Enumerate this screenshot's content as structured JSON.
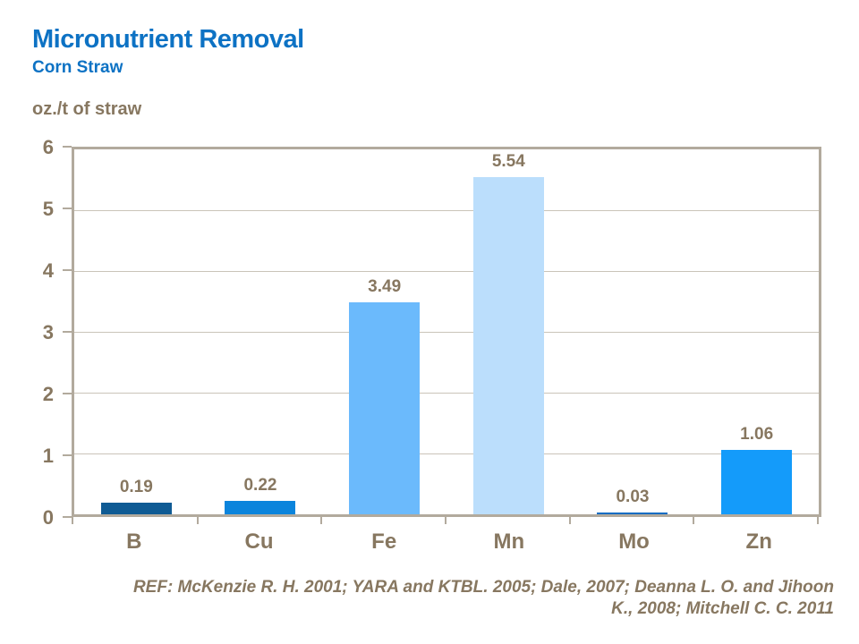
{
  "header": {
    "title": "Micronutrient Removal",
    "subtitle": "Corn Straw",
    "title_color": "#0d72c4"
  },
  "chart_data": {
    "type": "bar",
    "title": "Micronutrient Removal",
    "subtitle": "Corn Straw",
    "unit_label": "oz./t of straw",
    "xlabel": "",
    "ylabel": "oz./t of straw",
    "categories": [
      "B",
      "Cu",
      "Fe",
      "Mn",
      "Mo",
      "Zn"
    ],
    "values": [
      0.19,
      0.22,
      3.49,
      5.54,
      0.03,
      1.06
    ],
    "value_labels": [
      "0.19",
      "0.22",
      "3.49",
      "5.54",
      "0.03",
      "1.06"
    ],
    "bar_colors": [
      "#0f5b94",
      "#0b84dc",
      "#6bbafc",
      "#bbdefc",
      "#0d6cc2",
      "#149bfa"
    ],
    "ylim": [
      0,
      6
    ],
    "yticks": [
      0,
      1,
      2,
      3,
      4,
      5,
      6
    ],
    "grid": true,
    "legend": "none"
  },
  "footer": {
    "ref_line1": "REF: McKenzie R. H. 2001; YARA and KTBL. 2005; Dale, 2007; Deanna L. O. and Jihoon",
    "ref_line2": "K.,  2008; Mitchell C. C. 2011"
  },
  "colors": {
    "text_brown": "#877760",
    "axis": "#b2aa9d",
    "gridline": "#cac4b9",
    "background": "#ffffff"
  }
}
